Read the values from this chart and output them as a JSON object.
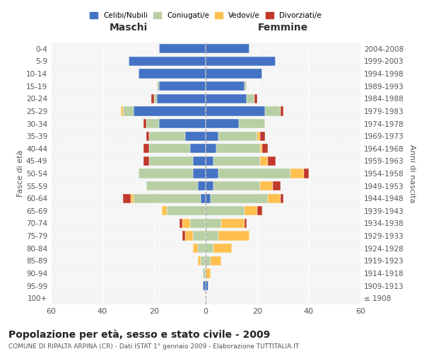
{
  "age_groups": [
    "100+",
    "95-99",
    "90-94",
    "85-89",
    "80-84",
    "75-79",
    "70-74",
    "65-69",
    "60-64",
    "55-59",
    "50-54",
    "45-49",
    "40-44",
    "35-39",
    "30-34",
    "25-29",
    "20-24",
    "15-19",
    "10-14",
    "5-9",
    "0-4"
  ],
  "birth_years": [
    "≤ 1908",
    "1909-1913",
    "1914-1918",
    "1919-1923",
    "1924-1928",
    "1929-1933",
    "1934-1938",
    "1939-1943",
    "1944-1948",
    "1949-1953",
    "1954-1958",
    "1959-1963",
    "1964-1968",
    "1969-1973",
    "1974-1978",
    "1979-1983",
    "1984-1988",
    "1989-1993",
    "1994-1998",
    "1999-2003",
    "2004-2008"
  ],
  "male": {
    "celibi": [
      0,
      1,
      0,
      0,
      0,
      0,
      0,
      0,
      2,
      3,
      5,
      5,
      6,
      8,
      18,
      28,
      19,
      18,
      26,
      30,
      18
    ],
    "coniugati": [
      0,
      0,
      1,
      2,
      3,
      5,
      6,
      15,
      26,
      20,
      21,
      17,
      16,
      14,
      5,
      4,
      1,
      1,
      0,
      0,
      0
    ],
    "vedovi": [
      0,
      0,
      0,
      1,
      2,
      3,
      3,
      2,
      1,
      0,
      0,
      0,
      0,
      0,
      0,
      1,
      0,
      0,
      0,
      0,
      0
    ],
    "divorziati": [
      0,
      0,
      0,
      0,
      0,
      1,
      1,
      0,
      3,
      0,
      0,
      2,
      2,
      1,
      1,
      0,
      1,
      0,
      0,
      0,
      0
    ]
  },
  "female": {
    "nubili": [
      0,
      1,
      0,
      0,
      0,
      0,
      0,
      0,
      2,
      3,
      5,
      3,
      4,
      5,
      13,
      23,
      16,
      15,
      22,
      27,
      17
    ],
    "coniugate": [
      0,
      0,
      0,
      2,
      3,
      5,
      6,
      15,
      22,
      18,
      28,
      18,
      17,
      15,
      10,
      6,
      3,
      1,
      0,
      0,
      0
    ],
    "vedove": [
      0,
      0,
      2,
      4,
      7,
      12,
      9,
      5,
      5,
      5,
      5,
      3,
      1,
      1,
      0,
      0,
      0,
      0,
      0,
      0,
      0
    ],
    "divorziate": [
      0,
      0,
      0,
      0,
      0,
      0,
      1,
      2,
      1,
      3,
      2,
      3,
      2,
      2,
      0,
      1,
      1,
      0,
      0,
      0,
      0
    ]
  },
  "colors": {
    "celibi": "#4472c4",
    "coniugati": "#b8cfa4",
    "vedovi": "#ffc050",
    "divorziati": "#c0392b"
  },
  "xlim": 60,
  "title": "Popolazione per età, sesso e stato civile - 2009",
  "subtitle": "COMUNE DI RIPALTA ARPINA (CR) - Dati ISTAT 1° gennaio 2009 - Elaborazione TUTTITALIA.IT",
  "ylabel_left": "Fasce di età",
  "ylabel_right": "Anni di nascita",
  "xlabel_left": "Maschi",
  "xlabel_right": "Femmine",
  "legend_labels": [
    "Celibi/Nubili",
    "Coniugati/e",
    "Vedovi/e",
    "Divorziati/e"
  ],
  "bg_color": "#f5f5f5"
}
